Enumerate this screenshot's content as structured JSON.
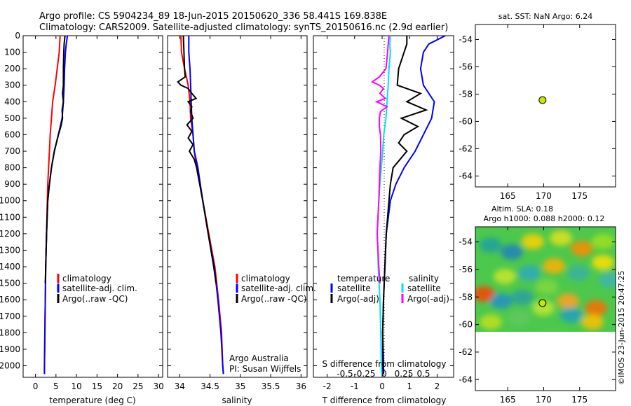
{
  "header": {
    "line1": "Argo profile: CS 5904234_89 18-Jun-2015 20150620_336 58.441S 169.838E",
    "line2": "Climatology: CARS2009. Satellite-adjusted climatology: synTS_20150616.nc (2.9d earlier)"
  },
  "colors": {
    "climatology": "#ff0000",
    "satellite": "#0000ff",
    "argo": "#000000",
    "salinity_sat": "#00e5e5",
    "salinity_argo": "#ff00ff",
    "marker": "#c8e600"
  },
  "chart_data": [
    {
      "type": "line",
      "id": "temperature",
      "xlabel": "temperature (deg C)",
      "ylabel": "",
      "xlim": [
        -3,
        31
      ],
      "ylim": [
        2070,
        0
      ],
      "x_ticks": [
        "0",
        "5",
        "10",
        "15",
        "20",
        "25",
        "30"
      ],
      "y_ticks": [
        "0",
        "100",
        "200",
        "300",
        "400",
        "500",
        "600",
        "700",
        "800",
        "900",
        "1000",
        "1100",
        "1200",
        "1300",
        "1400",
        "1500",
        "1600",
        "1700",
        "1800",
        "1900",
        "2000"
      ],
      "legend": [
        "climatology",
        "satellite-adj. clim.",
        "Argo(..raw -QC)"
      ],
      "series": [
        {
          "name": "climatology",
          "color": "#ff0000",
          "depth": [
            0,
            100,
            200,
            300,
            400,
            500,
            600,
            700,
            800,
            900,
            1000,
            1200,
            1400,
            1600,
            1800,
            2000,
            2050
          ],
          "x": [
            6.0,
            5.8,
            5.3,
            4.8,
            4.2,
            3.9,
            3.6,
            3.4,
            3.2,
            3.0,
            2.9,
            2.7,
            2.5,
            2.4,
            2.3,
            2.2,
            2.2
          ]
        },
        {
          "name": "satellite-adj. clim.",
          "color": "#0000ff",
          "depth": [
            0,
            50,
            100,
            200,
            300,
            400,
            500,
            600,
            700,
            800,
            900,
            1000,
            1200,
            1400,
            1600,
            1800,
            2000,
            2050
          ],
          "x": [
            7.8,
            7.5,
            7.3,
            7.1,
            7.0,
            6.8,
            6.5,
            5.6,
            4.6,
            3.9,
            3.4,
            3.0,
            2.7,
            2.5,
            2.4,
            2.3,
            2.2,
            2.2
          ]
        },
        {
          "name": "Argo(..raw -QC)",
          "color": "#000000",
          "depth": [
            0,
            50,
            100,
            200,
            300,
            350,
            400,
            450,
            500,
            550,
            600,
            700,
            800,
            900,
            1000,
            1200,
            1400,
            1500
          ],
          "x": [
            7.2,
            7.0,
            6.9,
            6.8,
            6.8,
            6.6,
            6.8,
            6.5,
            6.6,
            6.2,
            5.6,
            4.6,
            3.9,
            3.4,
            3.0,
            2.7,
            2.5,
            2.4
          ]
        }
      ]
    },
    {
      "type": "line",
      "id": "salinity",
      "xlabel": "salinity",
      "ylabel": "",
      "xlim": [
        33.8,
        36.1
      ],
      "ylim": [
        2070,
        0
      ],
      "x_ticks": [
        "34",
        "34.5",
        "35",
        "35.5",
        "36"
      ],
      "legend": [
        "climatology",
        "satellite-adj. clim.",
        "Argo(..raw -QC)"
      ],
      "annotations": [
        "Argo Australia",
        "PI: Susan Wijffels"
      ],
      "series": [
        {
          "name": "climatology",
          "color": "#ff0000",
          "depth": [
            0,
            100,
            200,
            300,
            400,
            500,
            600,
            700,
            800,
            900,
            1000,
            1200,
            1400,
            1600,
            1800,
            2000,
            2050
          ],
          "x": [
            34.02,
            34.03,
            34.08,
            34.14,
            34.17,
            34.18,
            34.22,
            34.24,
            34.28,
            34.33,
            34.38,
            34.48,
            34.58,
            34.64,
            34.69,
            34.71,
            34.72
          ]
        },
        {
          "name": "satellite-adj. clim.",
          "color": "#0000ff",
          "depth": [
            0,
            100,
            200,
            300,
            400,
            500,
            600,
            700,
            800,
            900,
            1000,
            1200,
            1400,
            1600,
            1800,
            2000,
            2050
          ],
          "x": [
            34.15,
            34.15,
            34.17,
            34.18,
            34.19,
            34.2,
            34.22,
            34.24,
            34.3,
            34.34,
            34.38,
            34.47,
            34.57,
            34.63,
            34.68,
            34.71,
            34.72
          ]
        },
        {
          "name": "Argo(..raw -QC)",
          "color": "#000000",
          "depth": [
            0,
            100,
            200,
            250,
            280,
            300,
            320,
            350,
            380,
            400,
            430,
            460,
            500,
            540,
            580,
            620,
            660,
            700,
            750,
            800,
            900,
            1000,
            1200,
            1400,
            1500
          ],
          "x": [
            34.06,
            34.07,
            34.08,
            34.09,
            33.97,
            34.02,
            34.14,
            34.2,
            34.27,
            34.14,
            34.2,
            34.18,
            34.22,
            34.12,
            34.2,
            34.14,
            34.22,
            34.16,
            34.24,
            34.28,
            34.33,
            34.38,
            34.47,
            34.56,
            34.6
          ]
        }
      ]
    },
    {
      "type": "line",
      "id": "differences",
      "xlabel_bottom": "T difference from climatology",
      "xlabel_top": "S difference from climatology",
      "xlim": [
        -2.5,
        2.6
      ],
      "ylim": [
        2070,
        0
      ],
      "x_ticks": [
        "-2",
        "-1",
        "0",
        "1",
        "2"
      ],
      "x_ticks_salinity": [
        "-0.5",
        "-0.25",
        "0",
        "0.25",
        "0.5"
      ],
      "legend_headers": [
        "temperature",
        "salinity"
      ],
      "legend": [
        "satellite",
        "Argo(-adj)",
        "satellite",
        "Argo(-adj)"
      ],
      "series": [
        {
          "name": "temperature satellite",
          "color": "#0000ff",
          "depth": [
            0,
            50,
            100,
            200,
            300,
            400,
            500,
            600,
            700,
            800,
            900,
            1000,
            1200,
            1400,
            1600,
            1800,
            2000,
            2050
          ],
          "x": [
            2.3,
            1.7,
            1.5,
            1.4,
            1.5,
            1.9,
            1.8,
            1.5,
            1.2,
            0.8,
            0.5,
            0.3,
            0.15,
            0.1,
            0.05,
            0.02,
            0.02,
            0.02
          ]
        },
        {
          "name": "temperature Argo(-adj)",
          "color": "#000000",
          "depth": [
            0,
            50,
            100,
            200,
            300,
            350,
            400,
            450,
            500,
            550,
            600,
            650,
            700,
            800,
            900,
            1000,
            1200,
            1400,
            1600,
            1800,
            2000,
            2050
          ],
          "x": [
            0.9,
            0.9,
            0.8,
            0.6,
            0.55,
            1.4,
            0.9,
            1.6,
            0.7,
            1.3,
            0.8,
            0.6,
            0.9,
            0.4,
            0.3,
            0.25,
            0.15,
            0.1,
            0.05,
            0.02,
            0.05,
            0.05
          ]
        },
        {
          "name": "salinity satellite",
          "color": "#00e5e5",
          "depth": [
            0,
            50,
            100,
            200,
            300,
            400,
            500,
            600,
            700,
            800,
            900,
            1000,
            1200,
            1400,
            1600,
            1800,
            2000,
            2050
          ],
          "x": [
            0.3,
            0.28,
            0.3,
            0.25,
            0.22,
            0.18,
            0.14,
            0.06,
            0.02,
            -0.03,
            -0.08,
            -0.12,
            -0.18,
            -0.14,
            -0.08,
            -0.05,
            -0.03,
            -0.02
          ]
        },
        {
          "name": "salinity Argo(-adj)",
          "color": "#ff00ff",
          "depth": [
            0,
            50,
            100,
            200,
            250,
            280,
            300,
            320,
            350,
            380,
            400,
            430,
            460,
            500,
            550,
            600,
            700,
            800,
            900,
            1000,
            1200,
            1400,
            1500
          ],
          "x": [
            0.25,
            0.22,
            0.2,
            0.14,
            -0.1,
            -0.36,
            -0.1,
            0.05,
            -0.08,
            0.12,
            -0.2,
            0.18,
            -0.06,
            -0.1,
            -0.1,
            -0.06,
            -0.05,
            -0.08,
            -0.1,
            -0.12,
            -0.18,
            -0.12,
            -0.08
          ]
        }
      ]
    },
    {
      "type": "scatter",
      "id": "sst-map",
      "title": "sat. SST: NaN Argo: 6.24",
      "xlim": [
        160.5,
        180
      ],
      "ylim": [
        -64.8,
        -52.9
      ],
      "x_ticks": [
        "165",
        "170",
        "175"
      ],
      "y_ticks": [
        "-54",
        "-56",
        "-58",
        "-60",
        "-62",
        "-64"
      ],
      "points": [
        {
          "lon": 169.84,
          "lat": -58.44
        }
      ]
    },
    {
      "type": "heatmap",
      "id": "altim-map",
      "title_line1": "Altim. SLA: 0.18",
      "title_line2": "Argo h1000: 0.088 h2000: 0.12",
      "xlim": [
        160.5,
        180
      ],
      "ylim": [
        -64.8,
        -52.9
      ],
      "x_ticks": [
        "165",
        "170",
        "175"
      ],
      "y_ticks": [
        "-54",
        "-56",
        "-58",
        "-60",
        "-62",
        "-64"
      ],
      "field_extent": {
        "lon": [
          160.5,
          180
        ],
        "lat": [
          -60.2,
          -52.9
        ]
      },
      "points": [
        {
          "lon": 169.84,
          "lat": -58.44
        }
      ]
    }
  ],
  "footer": {
    "credit": "©IMOS 23-Jun-2015 20:47:25"
  }
}
